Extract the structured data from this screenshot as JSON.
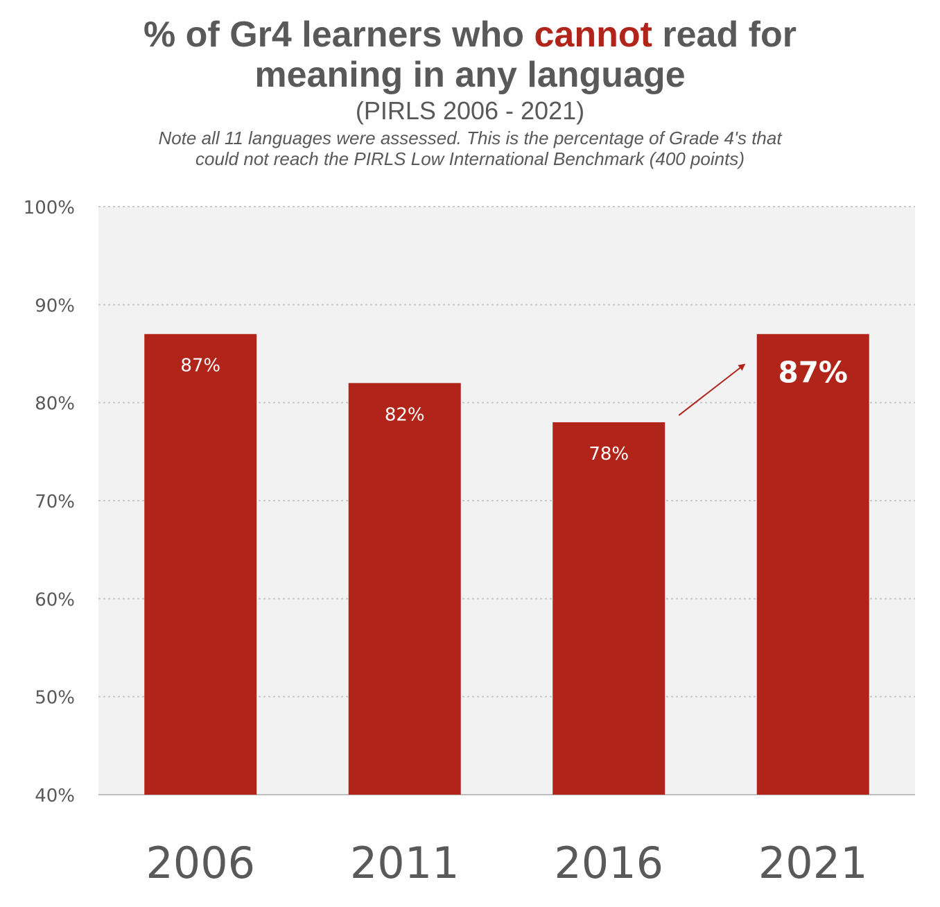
{
  "chart_data": {
    "type": "bar",
    "title_parts": [
      "% of Gr4 learners who ",
      "cannot",
      " read for",
      "meaning in any language"
    ],
    "subtitle": "(PIRLS 2006 - 2021)",
    "note_lines": [
      "Note all 11 languages were assessed. This is the percentage of Grade 4's that",
      "could not reach the PIRLS Low International Benchmark (400 points)"
    ],
    "categories": [
      "2006",
      "2011",
      "2016",
      "2021"
    ],
    "values": [
      87,
      82,
      78,
      87
    ],
    "data_labels": [
      "87%",
      "82%",
      "78%",
      "87%"
    ],
    "highlight_index": 3,
    "ylim": [
      40,
      100
    ],
    "yticks": [
      40,
      50,
      60,
      70,
      80,
      90,
      100
    ],
    "ytick_labels": [
      "40%",
      "50%",
      "60%",
      "70%",
      "80%",
      "90%",
      "100%"
    ],
    "xlabel": "",
    "ylabel": "",
    "grid": true,
    "legend": "none",
    "annotation": "arrow from 2016 bar toward 2021 bar",
    "colors": {
      "bar": "#b0241a",
      "accent": "#b0241a",
      "plot_background": "#f2f2f2",
      "gridline": "#c8c8c8",
      "text": "#595959"
    }
  }
}
